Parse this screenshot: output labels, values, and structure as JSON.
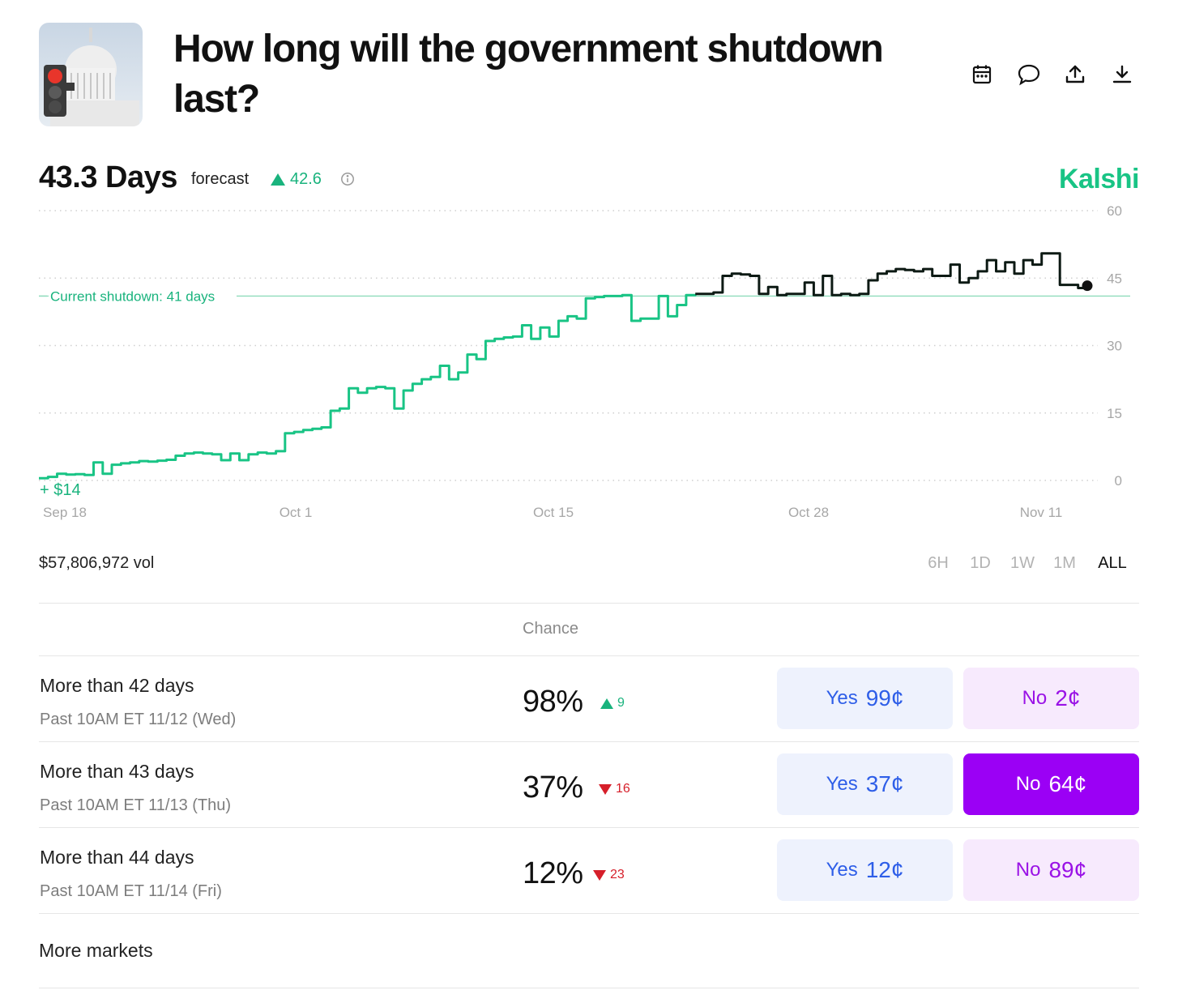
{
  "header": {
    "title": "How long will the government shutdown last?",
    "icons": [
      "calendar-icon",
      "comment-icon",
      "share-icon",
      "download-icon"
    ]
  },
  "forecast": {
    "value": "43.3 Days",
    "label": "forecast",
    "change": "42.6",
    "change_direction": "up",
    "brand": "Kalshi"
  },
  "chart_data": {
    "type": "line",
    "y_ticks": [
      "60",
      "45",
      "30",
      "15",
      "0"
    ],
    "ylim": [
      0,
      60
    ],
    "x_ticks": [
      "Sep 18",
      "Oct 1",
      "Oct 15",
      "Oct 28",
      "Nov 11"
    ],
    "start_label": "+ $14",
    "reference_line": {
      "label": "Current shutdown: 41 days",
      "value": 41
    },
    "series": [
      {
        "values": [
          0.5,
          0.8,
          1.5,
          1.3,
          1.4,
          1.2,
          4,
          1.5,
          3.5,
          3.8,
          4,
          4.3,
          4.2,
          4.4,
          4.6,
          5.5,
          6,
          6.2,
          6,
          5.8,
          4.5,
          6,
          4.5,
          5.8,
          6.2,
          6,
          6.5,
          10.5,
          10.8,
          11.2,
          11.5,
          11.8,
          15.5,
          16,
          20.5,
          19.5,
          20.5,
          20.8,
          20.5,
          16,
          20,
          21.5,
          22.5,
          23,
          25.5,
          22.5,
          24,
          28,
          27,
          31,
          31.5,
          31.8,
          32,
          34.5,
          31.5,
          34,
          32,
          35.5,
          36.5,
          36,
          40.5,
          40.8,
          41,
          41,
          41.2,
          35.5,
          36,
          36,
          41,
          36.5,
          39,
          41.2,
          41.5,
          41.5,
          41.8,
          45.5,
          46,
          45.8,
          45.5,
          41.5,
          43,
          41.2,
          41.5,
          41.5,
          44,
          41.2,
          45.5,
          41.2,
          41.5,
          41.2,
          41.5,
          44.5,
          46,
          46.5,
          47,
          46.8,
          46.5,
          47,
          45.5,
          45.5,
          48,
          44,
          45,
          46.5,
          49,
          46.5,
          48.5,
          46,
          49,
          48,
          50.5,
          50.5,
          43.5,
          43.5,
          42.8,
          43.3
        ],
        "color_before_split": "#19c485",
        "color_after_split": "#0d1a14",
        "split_index": 72
      }
    ]
  },
  "volume": "$57,806,972 vol",
  "ranges": [
    "6H",
    "1D",
    "1W",
    "1M",
    "ALL"
  ],
  "active_range": "ALL",
  "table": {
    "chance_header": "Chance"
  },
  "markets": [
    {
      "title": "More than 42 days",
      "subtitle": "Past 10AM ET 11/12 (Wed)",
      "chance": "98%",
      "delta": "9",
      "direction": "up",
      "yes_label": "Yes",
      "yes_price": "99¢",
      "no_label": "No",
      "no_price": "2¢",
      "no_selected": false
    },
    {
      "title": "More than 43 days",
      "subtitle": "Past 10AM ET 11/13 (Thu)",
      "chance": "37%",
      "delta": "16",
      "direction": "down",
      "yes_label": "Yes",
      "yes_price": "37¢",
      "no_label": "No",
      "no_price": "64¢",
      "no_selected": true
    },
    {
      "title": "More than 44 days",
      "subtitle": "Past 10AM ET 11/14 (Fri)",
      "chance": "12%",
      "delta": "23",
      "direction": "down",
      "yes_label": "Yes",
      "yes_price": "12¢",
      "no_label": "No",
      "no_price": "89¢",
      "no_selected": false
    }
  ],
  "more_markets": "More markets",
  "colors": {
    "accent_green": "#19c485",
    "yes_blue": "#2e5ee8",
    "no_purple": "#9b00f5",
    "down_red": "#d61f2a"
  }
}
